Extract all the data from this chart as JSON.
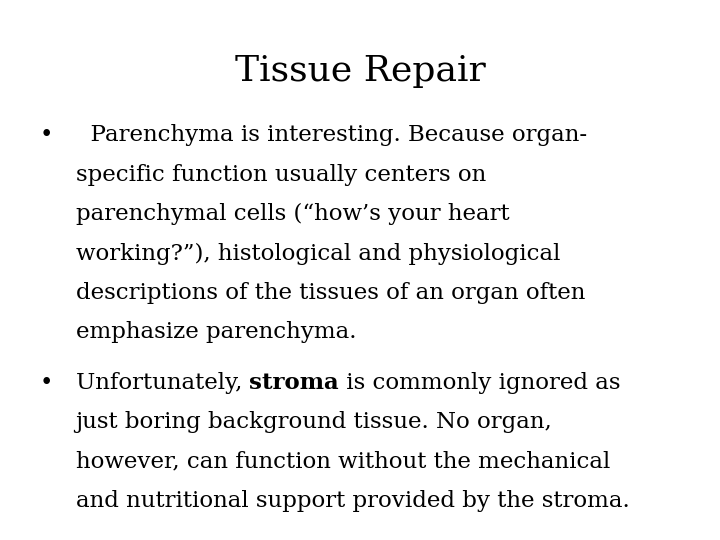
{
  "title": "Tissue Repair",
  "title_fontsize": 26,
  "background_color": "#ffffff",
  "text_color": "#000000",
  "body_fontsize": 16.5,
  "font_family": "DejaVu Serif",
  "bullet1_line1": "  Parenchyma is interesting. Because organ-",
  "bullet1_line2": "specific function usually centers on",
  "bullet1_line3": "parenchymal cells (“how’s your heart",
  "bullet1_line4": "working?”), histological and physiological",
  "bullet1_line5": "descriptions of the tissues of an organ often",
  "bullet1_line6": "emphasize parenchyma.",
  "bullet2_pre": "Unfortunately, ",
  "bullet2_bold": "stroma",
  "bullet2_post_line1": " is commonly ignored as",
  "bullet2_line2": "just boring background tissue. No organ,",
  "bullet2_line3": "however, can function without the mechanical",
  "bullet2_line4": "and nutritional support provided by the stroma."
}
